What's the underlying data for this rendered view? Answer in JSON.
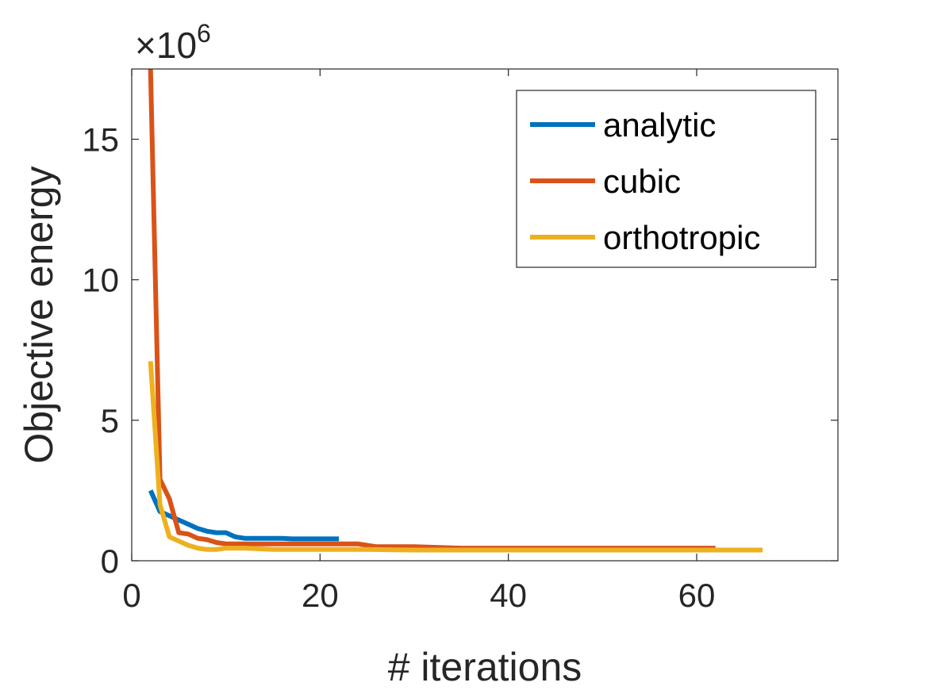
{
  "chart_data": {
    "type": "line",
    "xlabel": "# iterations",
    "ylabel": "Objective energy",
    "exponent_label": {
      "prefix": "×10",
      "power": "6"
    },
    "xlim": [
      0,
      75
    ],
    "ylim": [
      0,
      17.5
    ],
    "y_scale_factor": 1000000,
    "x_ticks": [
      0,
      20,
      40,
      60
    ],
    "y_ticks": [
      0,
      5,
      10,
      15
    ],
    "x_tick_labels": [
      "0",
      "20",
      "40",
      "60"
    ],
    "y_tick_labels": [
      "0",
      "5",
      "10",
      "15"
    ],
    "grid": false,
    "legend_position": "top-right",
    "series": [
      {
        "name": "analytic",
        "color": "#0072BD",
        "x": [
          2,
          3,
          4,
          5,
          6,
          7,
          8,
          9,
          10,
          11,
          12,
          13,
          14,
          15,
          16,
          17,
          18,
          19,
          20,
          21,
          22
        ],
        "y": [
          2.5,
          1.75,
          1.6,
          1.45,
          1.3,
          1.15,
          1.05,
          1.0,
          1.0,
          0.85,
          0.8,
          0.8,
          0.8,
          0.8,
          0.8,
          0.78,
          0.78,
          0.78,
          0.78,
          0.78,
          0.78
        ]
      },
      {
        "name": "cubic",
        "color": "#D95319",
        "x": [
          2,
          3,
          4,
          5,
          6,
          7,
          8,
          9,
          10,
          12,
          15,
          20,
          24,
          26,
          30,
          35,
          40,
          45,
          50,
          55,
          60,
          62
        ],
        "y": [
          17.5,
          2.9,
          2.2,
          1.0,
          0.95,
          0.8,
          0.75,
          0.65,
          0.6,
          0.6,
          0.6,
          0.6,
          0.6,
          0.5,
          0.5,
          0.45,
          0.45,
          0.45,
          0.45,
          0.45,
          0.45,
          0.45
        ]
      },
      {
        "name": "orthotropic",
        "color": "#EDB120",
        "x": [
          2,
          3,
          4,
          5,
          6,
          7,
          8,
          9,
          10,
          12,
          15,
          20,
          25,
          30,
          35,
          40,
          45,
          50,
          55,
          60,
          65,
          67
        ],
        "y": [
          7.1,
          2.0,
          0.85,
          0.7,
          0.55,
          0.45,
          0.4,
          0.4,
          0.45,
          0.45,
          0.4,
          0.4,
          0.4,
          0.38,
          0.38,
          0.38,
          0.38,
          0.38,
          0.38,
          0.38,
          0.38,
          0.38
        ]
      }
    ]
  }
}
